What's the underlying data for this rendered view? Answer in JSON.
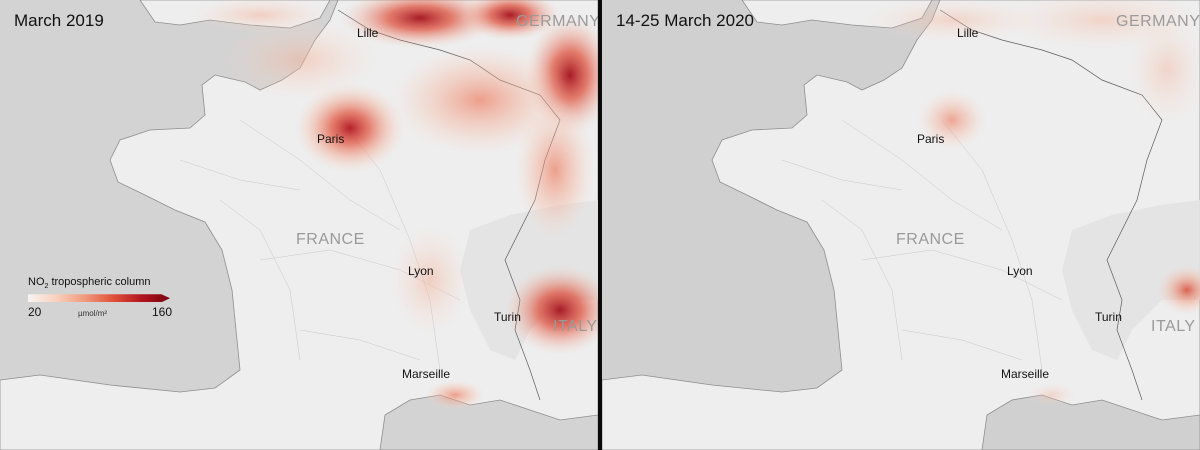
{
  "panels": {
    "left": {
      "title": "March 2019"
    },
    "right": {
      "title": "14-25 March 2020"
    }
  },
  "cities": {
    "lille": "Lille",
    "paris": "Paris",
    "lyon": "Lyon",
    "turin": "Turin",
    "marseille": "Marseille"
  },
  "countries": {
    "germany": "GERMANY",
    "france": "FRANCE",
    "italy": "ITALY"
  },
  "legend": {
    "title_prefix": "NO",
    "title_sub": "2",
    "title_suffix": " tropospheric column",
    "min": "20",
    "max": "160",
    "unit": "µmol/m²",
    "gradient_colors": [
      "#f7f4f2",
      "#f8d0bd",
      "#f09a7d",
      "#e0503a",
      "#b3151f",
      "#7a0010"
    ]
  },
  "colors": {
    "sea": "#d3d3d3",
    "land": "#eeeeee",
    "divider": "#0a0a0a"
  }
}
